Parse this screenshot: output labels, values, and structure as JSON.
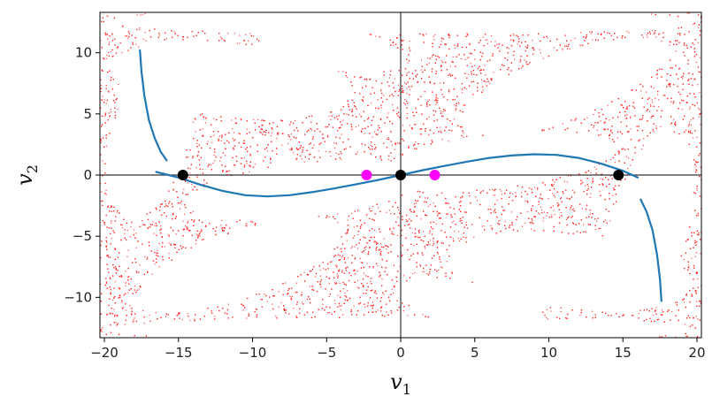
{
  "chart_data": {
    "type": "scatter",
    "title": "",
    "xlabel": {
      "main": "v",
      "sub": "1"
    },
    "ylabel": {
      "main": "v",
      "sub": "2"
    },
    "xlim": [
      -20.3,
      20.3
    ],
    "ylim": [
      -13.3,
      13.3
    ],
    "xticks": [
      -20,
      -15,
      -10,
      -5,
      0,
      5,
      10,
      15,
      20
    ],
    "yticks": [
      -10,
      -5,
      0,
      5,
      10
    ],
    "xtick_labels": [
      "−20",
      "−15",
      "−10",
      "−5",
      "0",
      "5",
      "10",
      "15",
      "20"
    ],
    "ytick_labels": [
      "−10",
      "−5",
      "0",
      "5",
      "10"
    ],
    "grid": false,
    "reference_lines": {
      "horizontal_at_y": 0,
      "vertical_at_x": 0
    },
    "series": [
      {
        "kind": "scatter-cloud",
        "color": "#ff2a2a",
        "description_points": "dense red point cloud of chaotic orbits, leaving white islands",
        "seed": 7
      },
      {
        "kind": "curve",
        "color": "#1f77b4",
        "points": [
          [
            -17.6,
            10.2
          ],
          [
            -17.5,
            8.5
          ],
          [
            -17.3,
            6.5
          ],
          [
            -17.0,
            4.5
          ],
          [
            -16.6,
            3.0
          ],
          [
            -16.2,
            1.9
          ],
          [
            -15.8,
            1.2
          ]
        ]
      },
      {
        "kind": "curve",
        "color": "#1f77b4",
        "points": [
          [
            -16.5,
            0.25
          ],
          [
            -15.0,
            -0.2
          ],
          [
            -13.5,
            -0.8
          ],
          [
            -12.0,
            -1.3
          ],
          [
            -10.5,
            -1.65
          ],
          [
            -9.0,
            -1.75
          ],
          [
            -7.5,
            -1.65
          ],
          [
            -6.0,
            -1.4
          ],
          [
            -4.5,
            -1.1
          ],
          [
            -3.0,
            -0.75
          ],
          [
            -1.5,
            -0.4
          ],
          [
            0.0,
            0.0
          ],
          [
            1.5,
            0.4
          ],
          [
            3.0,
            0.75
          ],
          [
            4.5,
            1.1
          ],
          [
            6.0,
            1.4
          ],
          [
            7.5,
            1.6
          ],
          [
            9.0,
            1.7
          ],
          [
            10.5,
            1.65
          ],
          [
            12.0,
            1.4
          ],
          [
            13.5,
            0.95
          ],
          [
            15.0,
            0.35
          ],
          [
            16.0,
            -0.2
          ]
        ]
      },
      {
        "kind": "curve",
        "color": "#1f77b4",
        "points": [
          [
            16.2,
            -2.0
          ],
          [
            16.6,
            -3.0
          ],
          [
            17.0,
            -4.5
          ],
          [
            17.3,
            -6.5
          ],
          [
            17.5,
            -8.5
          ],
          [
            17.6,
            -10.3
          ]
        ]
      },
      {
        "kind": "points",
        "name": "",
        "color": "#000000",
        "points": [
          [
            -14.7,
            0
          ],
          [
            0,
            0
          ],
          [
            14.7,
            0
          ]
        ]
      },
      {
        "kind": "points",
        "name": "",
        "color": "#ff00ff",
        "points": [
          [
            -2.3,
            0
          ],
          [
            2.3,
            0
          ]
        ]
      }
    ]
  },
  "colors": {
    "axes_frame": "#000000",
    "reference_line": "#333333",
    "background": "#ffffff"
  }
}
